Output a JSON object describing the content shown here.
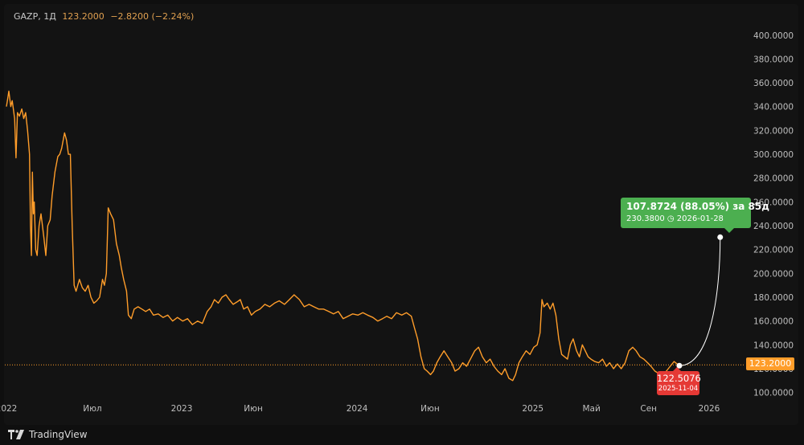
{
  "legend": {
    "symbol": "GAZP, 1Д",
    "price": "123.2000",
    "change": "−2.8200 (−2.24%)"
  },
  "price_tag": "123.2000",
  "projection": {
    "headline": "107.8724 (88.05%) за 85д",
    "detail": "230.3800 ◷ 2026-01-28",
    "start_value": "122.5076",
    "start_date": "2025-11-04"
  },
  "footer": {
    "brand": "TradingView"
  },
  "colors": {
    "line": "#ff9d2a",
    "up": "#4caf50",
    "down": "#e53935",
    "background": "#131313"
  },
  "chart_data": {
    "type": "line",
    "title": "",
    "xlabel": "",
    "ylabel": "",
    "ylim": [
      91,
      414
    ],
    "y_ticks": [
      100,
      120,
      140,
      160,
      180,
      200,
      220,
      240,
      260,
      280,
      300,
      320,
      340,
      360,
      380,
      400
    ],
    "y_tick_labels": [
      "100.0000",
      "120.0000",
      "140.0000",
      "160.0000",
      "180.0000",
      "200.0000",
      "220.0000",
      "240.0000",
      "260.0000",
      "280.0000",
      "300.0000",
      "320.0000",
      "340.0000",
      "360.0000",
      "380.0000",
      "400.0000"
    ],
    "x_ticks": [
      {
        "label": "2022",
        "date": "2022-01-03"
      },
      {
        "label": "Июл",
        "date": "2022-07-01"
      },
      {
        "label": "2023",
        "date": "2023-01-03"
      },
      {
        "label": "Июн",
        "date": "2023-06-01"
      },
      {
        "label": "2024",
        "date": "2024-01-03"
      },
      {
        "label": "Июн",
        "date": "2024-06-03"
      },
      {
        "label": "2025",
        "date": "2025-01-03"
      },
      {
        "label": "Май",
        "date": "2025-05-05"
      },
      {
        "label": "Сен",
        "date": "2025-09-01"
      },
      {
        "label": "2026",
        "date": "2026-01-05"
      }
    ],
    "series": [
      {
        "points": [
          [
            "2022-01-03",
            340
          ],
          [
            "2022-01-05",
            345
          ],
          [
            "2022-01-08",
            353
          ],
          [
            "2022-01-12",
            340
          ],
          [
            "2022-01-15",
            345
          ],
          [
            "2022-01-20",
            330
          ],
          [
            "2022-01-23",
            297
          ],
          [
            "2022-01-26",
            335
          ],
          [
            "2022-01-30",
            332
          ],
          [
            "2022-02-04",
            338
          ],
          [
            "2022-02-08",
            330
          ],
          [
            "2022-02-12",
            335
          ],
          [
            "2022-02-16",
            320
          ],
          [
            "2022-02-20",
            300
          ],
          [
            "2022-02-22",
            240
          ],
          [
            "2022-02-24",
            215
          ],
          [
            "2022-02-26",
            285
          ],
          [
            "2022-02-28",
            250
          ],
          [
            "2022-03-02",
            260
          ],
          [
            "2022-03-05",
            220
          ],
          [
            "2022-03-08",
            215
          ],
          [
            "2022-03-12",
            240
          ],
          [
            "2022-03-16",
            250
          ],
          [
            "2022-03-22",
            230
          ],
          [
            "2022-03-26",
            215
          ],
          [
            "2022-03-30",
            240
          ],
          [
            "2022-04-04",
            245
          ],
          [
            "2022-04-08",
            265
          ],
          [
            "2022-04-14",
            285
          ],
          [
            "2022-04-20",
            298
          ],
          [
            "2022-04-24",
            300
          ],
          [
            "2022-04-28",
            305
          ],
          [
            "2022-05-04",
            318
          ],
          [
            "2022-05-08",
            312
          ],
          [
            "2022-05-12",
            300
          ],
          [
            "2022-05-16",
            300
          ],
          [
            "2022-05-20",
            240
          ],
          [
            "2022-05-24",
            190
          ],
          [
            "2022-05-28",
            185
          ],
          [
            "2022-06-04",
            195
          ],
          [
            "2022-06-10",
            188
          ],
          [
            "2022-06-16",
            185
          ],
          [
            "2022-06-22",
            190
          ],
          [
            "2022-06-28",
            180
          ],
          [
            "2022-07-04",
            175
          ],
          [
            "2022-07-10",
            177
          ],
          [
            "2022-07-16",
            180
          ],
          [
            "2022-07-22",
            195
          ],
          [
            "2022-07-26",
            190
          ],
          [
            "2022-07-30",
            200
          ],
          [
            "2022-08-03",
            255
          ],
          [
            "2022-08-08",
            250
          ],
          [
            "2022-08-14",
            245
          ],
          [
            "2022-08-20",
            225
          ],
          [
            "2022-08-26",
            215
          ],
          [
            "2022-08-30",
            205
          ],
          [
            "2022-09-04",
            195
          ],
          [
            "2022-09-10",
            185
          ],
          [
            "2022-09-14",
            165
          ],
          [
            "2022-09-20",
            162
          ],
          [
            "2022-09-26",
            170
          ],
          [
            "2022-10-04",
            172
          ],
          [
            "2022-10-12",
            170
          ],
          [
            "2022-10-20",
            168
          ],
          [
            "2022-10-28",
            170
          ],
          [
            "2022-11-05",
            165
          ],
          [
            "2022-11-15",
            166
          ],
          [
            "2022-11-25",
            163
          ],
          [
            "2022-12-05",
            165
          ],
          [
            "2022-12-15",
            160
          ],
          [
            "2022-12-25",
            163
          ],
          [
            "2023-01-05",
            160
          ],
          [
            "2023-01-15",
            162
          ],
          [
            "2023-01-25",
            157
          ],
          [
            "2023-02-05",
            160
          ],
          [
            "2023-02-15",
            158
          ],
          [
            "2023-02-25",
            168
          ],
          [
            "2023-03-05",
            172
          ],
          [
            "2023-03-12",
            178
          ],
          [
            "2023-03-20",
            175
          ],
          [
            "2023-03-28",
            180
          ],
          [
            "2023-04-05",
            182
          ],
          [
            "2023-04-12",
            178
          ],
          [
            "2023-04-20",
            174
          ],
          [
            "2023-04-28",
            176
          ],
          [
            "2023-05-05",
            178
          ],
          [
            "2023-05-12",
            170
          ],
          [
            "2023-05-20",
            172
          ],
          [
            "2023-05-28",
            165
          ],
          [
            "2023-06-05",
            168
          ],
          [
            "2023-06-15",
            170
          ],
          [
            "2023-06-25",
            174
          ],
          [
            "2023-07-05",
            172
          ],
          [
            "2023-07-15",
            175
          ],
          [
            "2023-07-25",
            177
          ],
          [
            "2023-08-05",
            174
          ],
          [
            "2023-08-15",
            178
          ],
          [
            "2023-08-25",
            182
          ],
          [
            "2023-09-05",
            178
          ],
          [
            "2023-09-15",
            172
          ],
          [
            "2023-09-25",
            174
          ],
          [
            "2023-10-05",
            172
          ],
          [
            "2023-10-15",
            170
          ],
          [
            "2023-10-25",
            170
          ],
          [
            "2023-11-05",
            168
          ],
          [
            "2023-11-15",
            166
          ],
          [
            "2023-11-25",
            168
          ],
          [
            "2023-12-05",
            162
          ],
          [
            "2023-12-15",
            164
          ],
          [
            "2023-12-25",
            166
          ],
          [
            "2024-01-05",
            165
          ],
          [
            "2024-01-15",
            167
          ],
          [
            "2024-01-25",
            165
          ],
          [
            "2024-02-05",
            163
          ],
          [
            "2024-02-15",
            160
          ],
          [
            "2024-02-25",
            162
          ],
          [
            "2024-03-05",
            164
          ],
          [
            "2024-03-15",
            162
          ],
          [
            "2024-03-25",
            167
          ],
          [
            "2024-04-05",
            165
          ],
          [
            "2024-04-15",
            167
          ],
          [
            "2024-04-25",
            164
          ],
          [
            "2024-05-01",
            155
          ],
          [
            "2024-05-08",
            145
          ],
          [
            "2024-05-15",
            130
          ],
          [
            "2024-05-22",
            120
          ],
          [
            "2024-05-28",
            118
          ],
          [
            "2024-06-04",
            115
          ],
          [
            "2024-06-10",
            118
          ],
          [
            "2024-06-17",
            125
          ],
          [
            "2024-06-24",
            130
          ],
          [
            "2024-07-02",
            135
          ],
          [
            "2024-07-10",
            130
          ],
          [
            "2024-07-18",
            125
          ],
          [
            "2024-07-25",
            118
          ],
          [
            "2024-08-02",
            120
          ],
          [
            "2024-08-10",
            125
          ],
          [
            "2024-08-18",
            122
          ],
          [
            "2024-08-26",
            128
          ],
          [
            "2024-09-04",
            135
          ],
          [
            "2024-09-12",
            138
          ],
          [
            "2024-09-20",
            130
          ],
          [
            "2024-09-28",
            125
          ],
          [
            "2024-10-06",
            128
          ],
          [
            "2024-10-14",
            122
          ],
          [
            "2024-10-22",
            118
          ],
          [
            "2024-10-30",
            115
          ],
          [
            "2024-11-06",
            120
          ],
          [
            "2024-11-14",
            112
          ],
          [
            "2024-11-22",
            110
          ],
          [
            "2024-11-28",
            115
          ],
          [
            "2024-12-05",
            125
          ],
          [
            "2024-12-12",
            130
          ],
          [
            "2024-12-20",
            135
          ],
          [
            "2024-12-28",
            132
          ],
          [
            "2025-01-05",
            138
          ],
          [
            "2025-01-12",
            140
          ],
          [
            "2025-01-18",
            150
          ],
          [
            "2025-01-22",
            178
          ],
          [
            "2025-01-26",
            172
          ],
          [
            "2025-02-02",
            175
          ],
          [
            "2025-02-08",
            170
          ],
          [
            "2025-02-14",
            175
          ],
          [
            "2025-02-20",
            165
          ],
          [
            "2025-02-26",
            145
          ],
          [
            "2025-03-04",
            132
          ],
          [
            "2025-03-10",
            130
          ],
          [
            "2025-03-16",
            128
          ],
          [
            "2025-03-22",
            140
          ],
          [
            "2025-03-28",
            145
          ],
          [
            "2025-04-04",
            135
          ],
          [
            "2025-04-10",
            130
          ],
          [
            "2025-04-16",
            140
          ],
          [
            "2025-04-22",
            135
          ],
          [
            "2025-04-28",
            130
          ],
          [
            "2025-05-04",
            128
          ],
          [
            "2025-05-12",
            126
          ],
          [
            "2025-05-20",
            125
          ],
          [
            "2025-05-28",
            128
          ],
          [
            "2025-06-05",
            122
          ],
          [
            "2025-06-12",
            125
          ],
          [
            "2025-06-20",
            120
          ],
          [
            "2025-06-28",
            124
          ],
          [
            "2025-07-06",
            120
          ],
          [
            "2025-07-14",
            125
          ],
          [
            "2025-07-22",
            135
          ],
          [
            "2025-07-30",
            138
          ],
          [
            "2025-08-06",
            135
          ],
          [
            "2025-08-14",
            130
          ],
          [
            "2025-08-22",
            128
          ],
          [
            "2025-08-30",
            125
          ],
          [
            "2025-09-06",
            122
          ],
          [
            "2025-09-14",
            118
          ],
          [
            "2025-09-22",
            116
          ],
          [
            "2025-09-30",
            115
          ],
          [
            "2025-10-08",
            118
          ],
          [
            "2025-10-16",
            122
          ],
          [
            "2025-10-24",
            126
          ],
          [
            "2025-11-04",
            122.5076
          ]
        ]
      }
    ],
    "projection_line": {
      "from": [
        "2025-11-04",
        122.5076
      ],
      "to": [
        "2026-01-28",
        230.38
      ]
    },
    "last_price": 123.2,
    "grid": false,
    "legend_position": "top-left"
  }
}
